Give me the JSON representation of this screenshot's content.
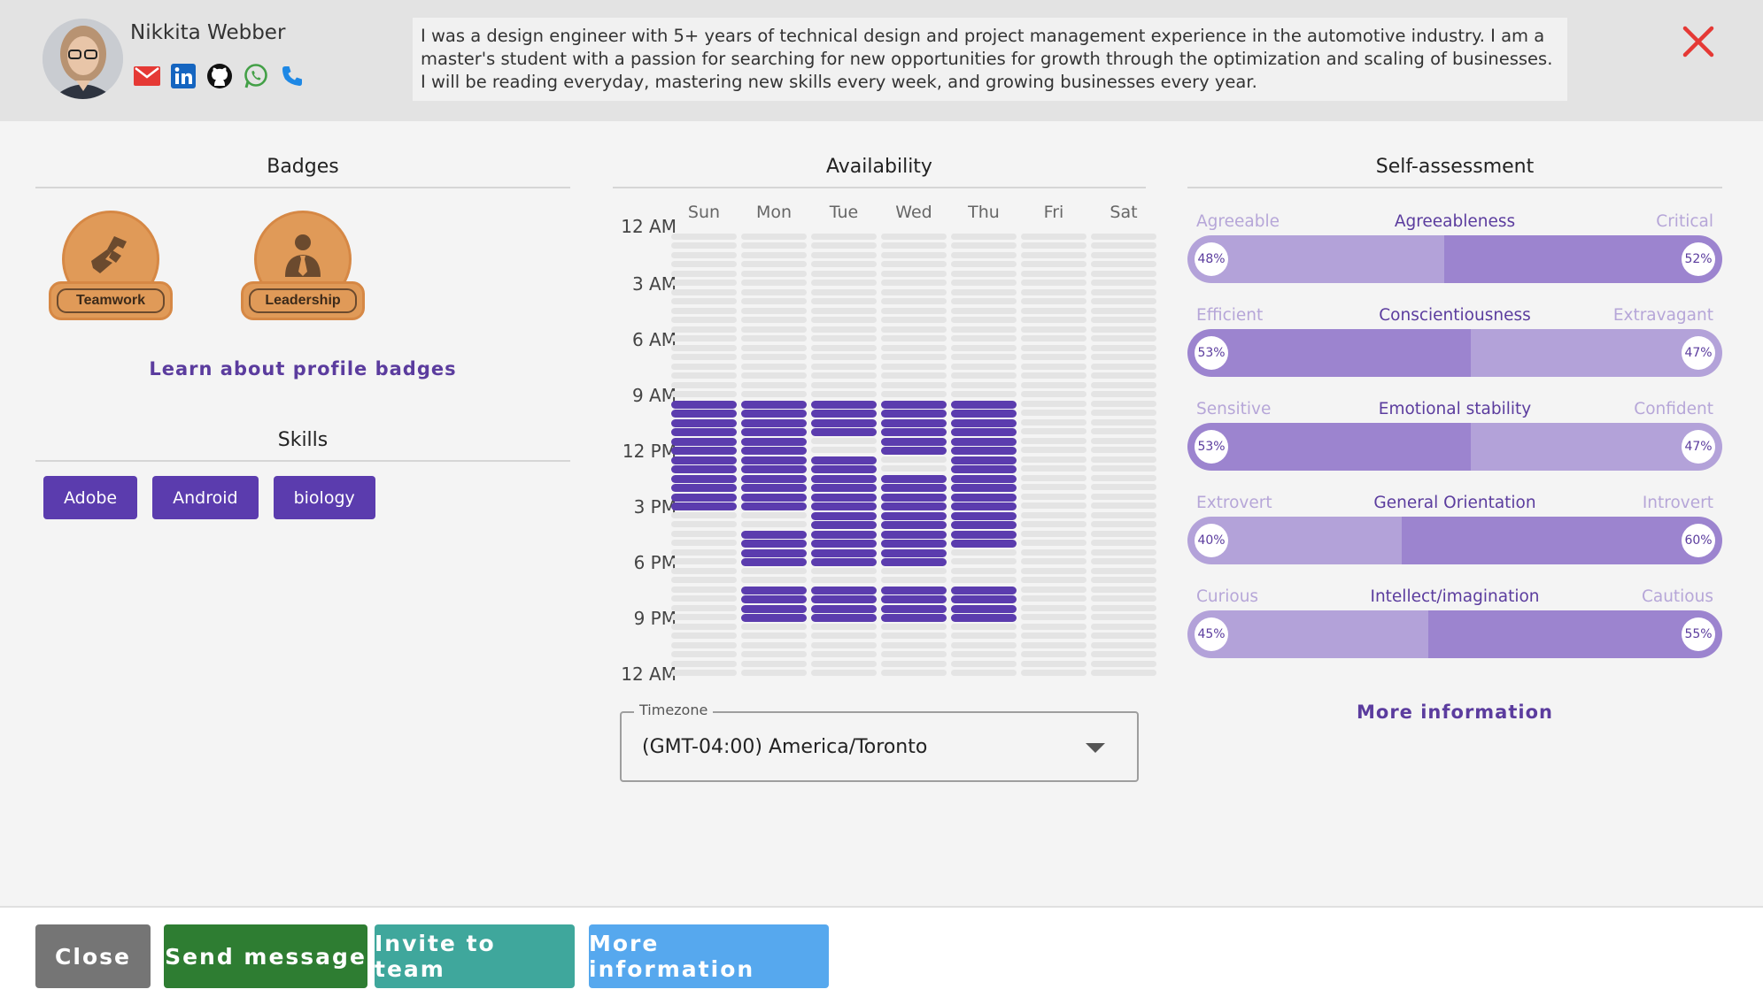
{
  "profile": {
    "name": "Nikkita Webber",
    "bio": "I was a design engineer with 5+ years of technical design and project management experience in the automotive industry. I am a master's student with a passion for searching for new opportunities for growth through the optimization and scaling of businesses. I will be reading everyday, mastering new skills every week, and growing businesses every year.",
    "contact_icons": [
      "email-icon",
      "linkedin-icon",
      "github-icon",
      "whatsapp-icon",
      "phone-icon"
    ]
  },
  "badges": {
    "title": "Badges",
    "items": [
      {
        "label": "Teamwork",
        "icon": "handshake-icon"
      },
      {
        "label": "Leadership",
        "icon": "person-tie-icon"
      }
    ],
    "learn_link": "Learn about profile badges"
  },
  "skills": {
    "title": "Skills",
    "items": [
      "Adobe",
      "Android",
      "biology"
    ]
  },
  "availability": {
    "title": "Availability",
    "days": [
      "Sun",
      "Mon",
      "Tue",
      "Wed",
      "Thu",
      "Fri",
      "Sat"
    ],
    "time_labels": [
      "12 AM",
      "3 AM",
      "6 AM",
      "9 AM",
      "12 PM",
      "3 PM",
      "6 PM",
      "9 PM",
      "12 AM"
    ],
    "available_hours": {
      "Sun": [
        9,
        10,
        11,
        12,
        13,
        14
      ],
      "Mon": [
        9,
        10,
        11,
        12,
        13,
        14,
        16,
        17,
        19,
        20
      ],
      "Tue": [
        9,
        10,
        12,
        13,
        14,
        15,
        16,
        17,
        19,
        20
      ],
      "Wed": [
        9,
        10,
        11,
        13,
        14,
        15,
        16,
        17,
        19,
        20
      ],
      "Thu": [
        9,
        10,
        11,
        12,
        13,
        14,
        15,
        16,
        19,
        20
      ],
      "Fri": [],
      "Sat": []
    },
    "timezone_label": "Timezone",
    "timezone_value": "(GMT-04:00) America/Toronto"
  },
  "self_assessment": {
    "title": "Self-assessment",
    "traits": [
      {
        "name": "Agreeableness",
        "left": "Agreeable",
        "right": "Critical",
        "left_pct": 48,
        "right_pct": 52,
        "left_label": "48%",
        "right_label": "52%"
      },
      {
        "name": "Conscientiousness",
        "left": "Efficient",
        "right": "Extravagant",
        "left_pct": 53,
        "right_pct": 47,
        "left_label": "53%",
        "right_label": "47%"
      },
      {
        "name": "Emotional stability",
        "left": "Sensitive",
        "right": "Confident",
        "left_pct": 53,
        "right_pct": 47,
        "left_label": "53%",
        "right_label": "47%"
      },
      {
        "name": "General Orientation",
        "left": "Extrovert",
        "right": "Introvert",
        "left_pct": 40,
        "right_pct": 60,
        "left_label": "40%",
        "right_label": "60%"
      },
      {
        "name": "Intellect/imagination",
        "left": "Curious",
        "right": "Cautious",
        "left_pct": 45,
        "right_pct": 55,
        "left_label": "45%",
        "right_label": "55%"
      }
    ],
    "more_info": "More information"
  },
  "footer": {
    "close": "Close",
    "send_message": "Send message",
    "invite": "Invite to team",
    "more_info": "More information"
  },
  "colors": {
    "accent": "#5b3cae",
    "bar_dark": "#9c84cf",
    "bar_light": "#b3a2d9",
    "badge": "#e09a58",
    "close_red": "#e53935",
    "btn_close": "#757575",
    "btn_send": "#2e7d32",
    "btn_invite": "#3fa79c",
    "btn_more": "#56a8ee"
  }
}
